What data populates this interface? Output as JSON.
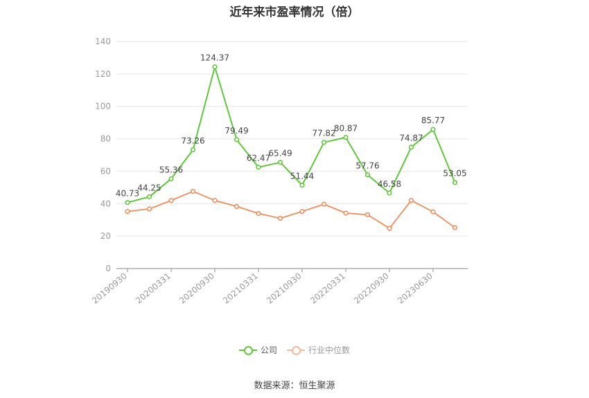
{
  "chart_data": {
    "type": "line",
    "title": "近年来市盈率情况（倍）",
    "source": "数据来源：恒生聚源",
    "ylim": [
      0,
      140
    ],
    "yticks": [
      0,
      20,
      40,
      60,
      80,
      100,
      120,
      140
    ],
    "x": [
      "20190930",
      "20191231",
      "20200331",
      "20200630",
      "20200930",
      "20201231",
      "20210331",
      "20210630",
      "20210930",
      "20211231",
      "20220331",
      "20220630",
      "20220930",
      "20221231",
      "20230630",
      "20230930"
    ],
    "xticks_shown": [
      "20190930",
      "20200331",
      "20200930",
      "20210331",
      "20210930",
      "20220331",
      "20220930",
      "20230630"
    ],
    "grid": true,
    "legend_position": "bottom",
    "series": [
      {
        "name": "公司",
        "color": "#5ec73a",
        "values": [
          40.73,
          44.25,
          55.36,
          73.26,
          124.37,
          79.49,
          62.47,
          65.49,
          51.44,
          77.82,
          80.87,
          57.76,
          46.58,
          74.87,
          85.77,
          53.05
        ],
        "labels": [
          "40.73",
          "44.25",
          "55.36",
          "73.26",
          "124.37",
          "79.49",
          "62.47",
          "65.49",
          "51.44",
          "77.82",
          "80.87",
          "57.76",
          "46.58",
          "74.87",
          "85.77",
          "53.05"
        ]
      },
      {
        "name": "行业中位数",
        "color": "#f08c5a",
        "values": [
          35.2,
          36.8,
          42.0,
          47.6,
          42.0,
          38.3,
          34.0,
          31.0,
          35.2,
          39.7,
          34.2,
          33.2,
          24.8,
          42.0,
          35.0,
          25.2
        ]
      }
    ]
  }
}
